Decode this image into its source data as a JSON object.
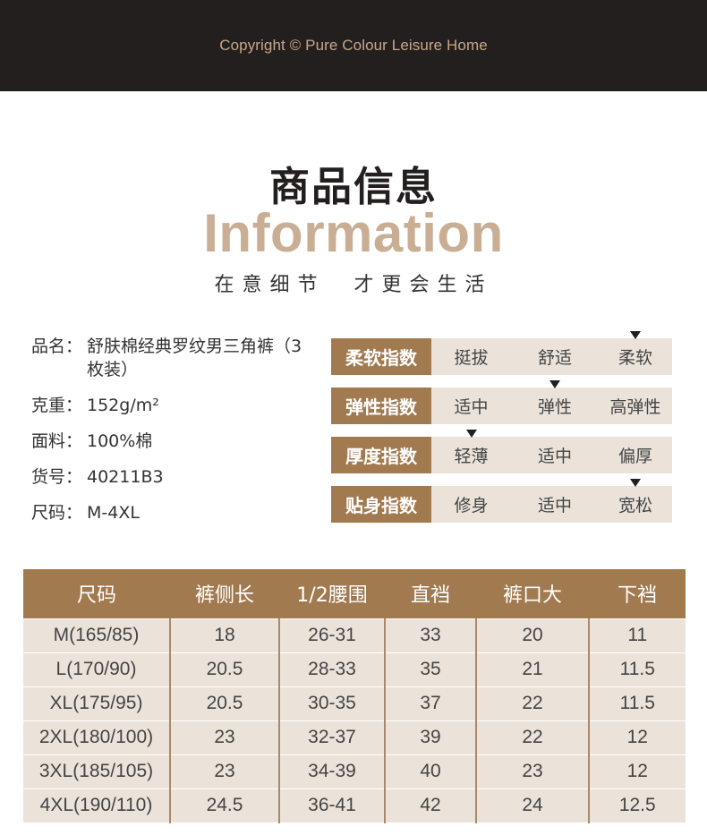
{
  "header": {
    "copyright": "Copyright © Pure Colour Leisure Home"
  },
  "section": {
    "title_cn": "商品信息",
    "title_en": "Information",
    "subtitle": "在意细节  才更会生活"
  },
  "product_info": [
    {
      "key": "品名：",
      "value": "舒肤棉经典罗纹男三角裤（3枚装）"
    },
    {
      "key": "克重：",
      "value": "152g/m²"
    },
    {
      "key": "面料：",
      "value": "100%棉"
    },
    {
      "key": "货号：",
      "value": "40211B3"
    },
    {
      "key": "尺码：",
      "value": "M-4XL"
    }
  ],
  "indices": [
    {
      "label": "柔软指数",
      "options": [
        "挺拔",
        "舒适",
        "柔软"
      ],
      "selected": 2
    },
    {
      "label": "弹性指数",
      "options": [
        "适中",
        "弹性",
        "高弹性"
      ],
      "selected": 1
    },
    {
      "label": "厚度指数",
      "options": [
        "轻薄",
        "适中",
        "偏厚"
      ],
      "selected": 0
    },
    {
      "label": "贴身指数",
      "options": [
        "修身",
        "适中",
        "宽松"
      ],
      "selected": 2
    }
  ],
  "size_table": {
    "headers": [
      "尺码",
      "裤侧长",
      "1/2腰围",
      "直裆",
      "裤口大",
      "下裆"
    ],
    "rows": [
      [
        "M(165/85)",
        "18",
        "26-31",
        "33",
        "20",
        "11"
      ],
      [
        "L(170/90)",
        "20.5",
        "28-33",
        "35",
        "21",
        "11.5"
      ],
      [
        "XL(175/95)",
        "20.5",
        "30-35",
        "37",
        "22",
        "11.5"
      ],
      [
        "2XL(180/100)",
        "23",
        "32-37",
        "39",
        "22",
        "12"
      ],
      [
        "3XL(185/105)",
        "23",
        "34-39",
        "40",
        "23",
        "12"
      ],
      [
        "4XL(190/110)",
        "24.5",
        "36-41",
        "42",
        "24",
        "12.5"
      ]
    ]
  },
  "colors": {
    "accent": "#a27a50",
    "light": "#ebe3da",
    "title_gold": "#c9ae94",
    "topbar": "#231f1f"
  }
}
